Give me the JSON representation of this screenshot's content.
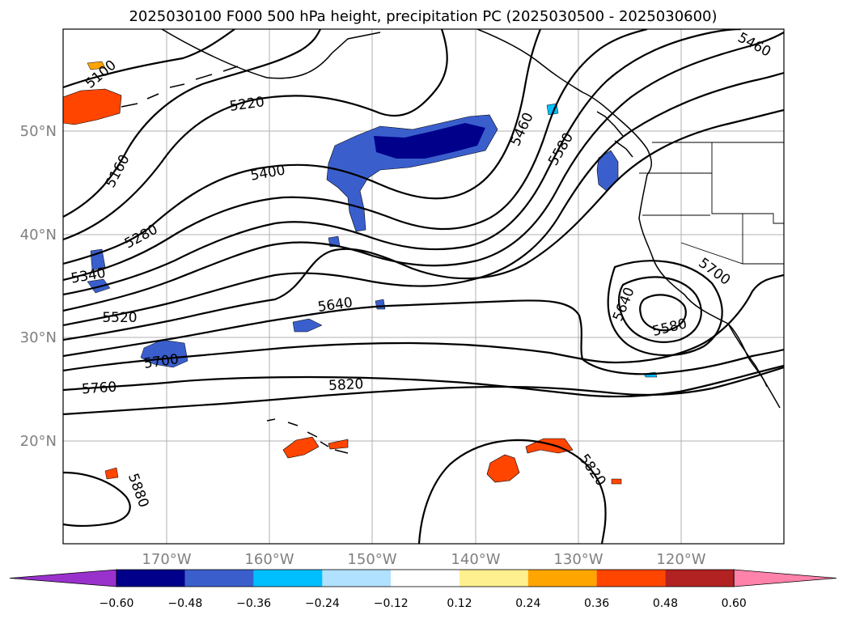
{
  "title": "2025030100 F000 500 hPa height, precipitation PC (2025030500 - 2025030600)",
  "map": {
    "lat_ticks": [
      "50°N",
      "40°N",
      "30°N",
      "20°N"
    ],
    "lon_ticks": [
      "170°W",
      "160°W",
      "150°W",
      "140°W",
      "130°W",
      "120°W"
    ],
    "grid": true,
    "contour_labels": [
      "5100",
      "5220",
      "5460",
      "5160",
      "5400",
      "5460",
      "5580",
      "5280",
      "5340",
      "5520",
      "5640",
      "5700",
      "5640",
      "5580",
      "5700",
      "5760",
      "5820",
      "5820",
      "5880"
    ]
  },
  "colorbar": {
    "colors": [
      "#9932cc",
      "#00008b",
      "#3a5fcd",
      "#00bfff",
      "#b0e2ff",
      "#ffffff",
      "#fff08f",
      "#ffa500",
      "#ff4500",
      "#b22222",
      "#ff82ab"
    ],
    "tick_labels": [
      "−0.60",
      "−0.48",
      "−0.36",
      "−0.24",
      "−0.12",
      "0.12",
      "0.24",
      "0.36",
      "0.48",
      "0.60"
    ]
  }
}
